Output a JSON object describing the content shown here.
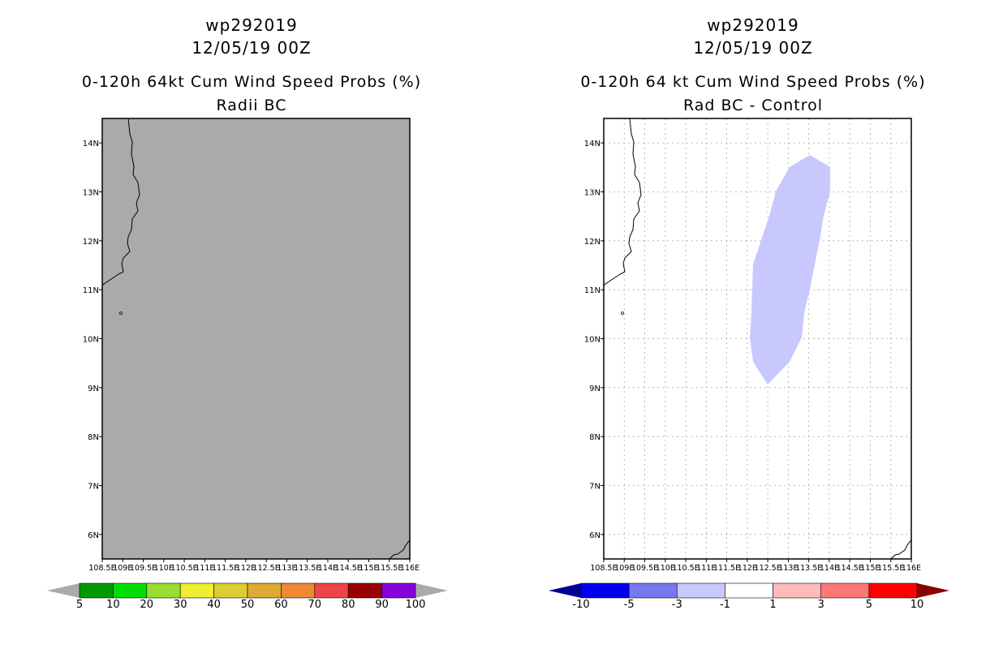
{
  "left_panel": {
    "title_line1": "wp292019",
    "title_line2": "12/05/19 00Z",
    "subtitle_line1": "0-120h 64kt Cum Wind Speed Probs (%)",
    "subtitle_line2": "Radii BC",
    "background_color": "#aaaaaa",
    "colorbar": {
      "colors": [
        "#009900",
        "#00dd00",
        "#99dd33",
        "#eeee33",
        "#ddcc33",
        "#ddaa33",
        "#ee8833",
        "#ee4444",
        "#990000",
        "#8800dd"
      ],
      "left_arrow_color": "#aaaaaa",
      "right_arrow_color": "#aaaaaa",
      "labels": [
        "5",
        "10",
        "20",
        "30",
        "40",
        "50",
        "60",
        "70",
        "80",
        "90",
        "100"
      ]
    }
  },
  "right_panel": {
    "title_line1": "wp292019",
    "title_line2": "12/05/19 00Z",
    "subtitle_line1": "0-120h 64 kt Cum Wind Speed Probs (%)",
    "subtitle_line2": "Rad BC - Control",
    "background_color": "#ffffff",
    "region_color": "#c8c8ff",
    "colorbar": {
      "colors": [
        "#0000ee",
        "#7777ee",
        "#c8c8ff",
        "#ffffff",
        "#ffbbbb",
        "#ff7777",
        "#ff0000"
      ],
      "left_arrow_color": "#000099",
      "right_arrow_color": "#880000",
      "labels": [
        "-10",
        "-5",
        "-3",
        "-1",
        "1",
        "3",
        "5",
        "10"
      ]
    }
  },
  "axes": {
    "y_ticks": [
      "14N",
      "13N",
      "12N",
      "11N",
      "10N",
      "9N",
      "8N",
      "7N",
      "6N"
    ],
    "x_ticks": [
      "108.5E",
      "109E",
      "109.5E",
      "110E",
      "110.5E",
      "111E",
      "111.5E",
      "112E",
      "112.5E",
      "113E",
      "113.5E",
      "114E",
      "114.5E",
      "115E",
      "115.5E",
      "116E"
    ]
  },
  "chart_data": [
    {
      "type": "heatmap",
      "title": "wp292019 12/05/19 00Z — 0-120h 64kt Cum Wind Speed Probs (%) Radii BC",
      "xlim": [
        108.5,
        116.0
      ],
      "ylim": [
        5.5,
        14.5
      ],
      "field": "uniform below 5%",
      "legend_levels": [
        5,
        10,
        20,
        30,
        40,
        50,
        60,
        70,
        80,
        90,
        100
      ]
    },
    {
      "type": "heatmap",
      "title": "wp292019 12/05/19 00Z — 0-120h 64 kt Cum Wind Speed Probs (%) Rad BC - Control",
      "xlim": [
        108.5,
        116.0
      ],
      "ylim": [
        5.5,
        14.5
      ],
      "field": "-3 to -1 region over 112E-114E, 9N-13.8N; elsewhere -1 to 1",
      "legend_levels": [
        -10,
        -5,
        -3,
        -1,
        1,
        3,
        5,
        10
      ]
    }
  ]
}
